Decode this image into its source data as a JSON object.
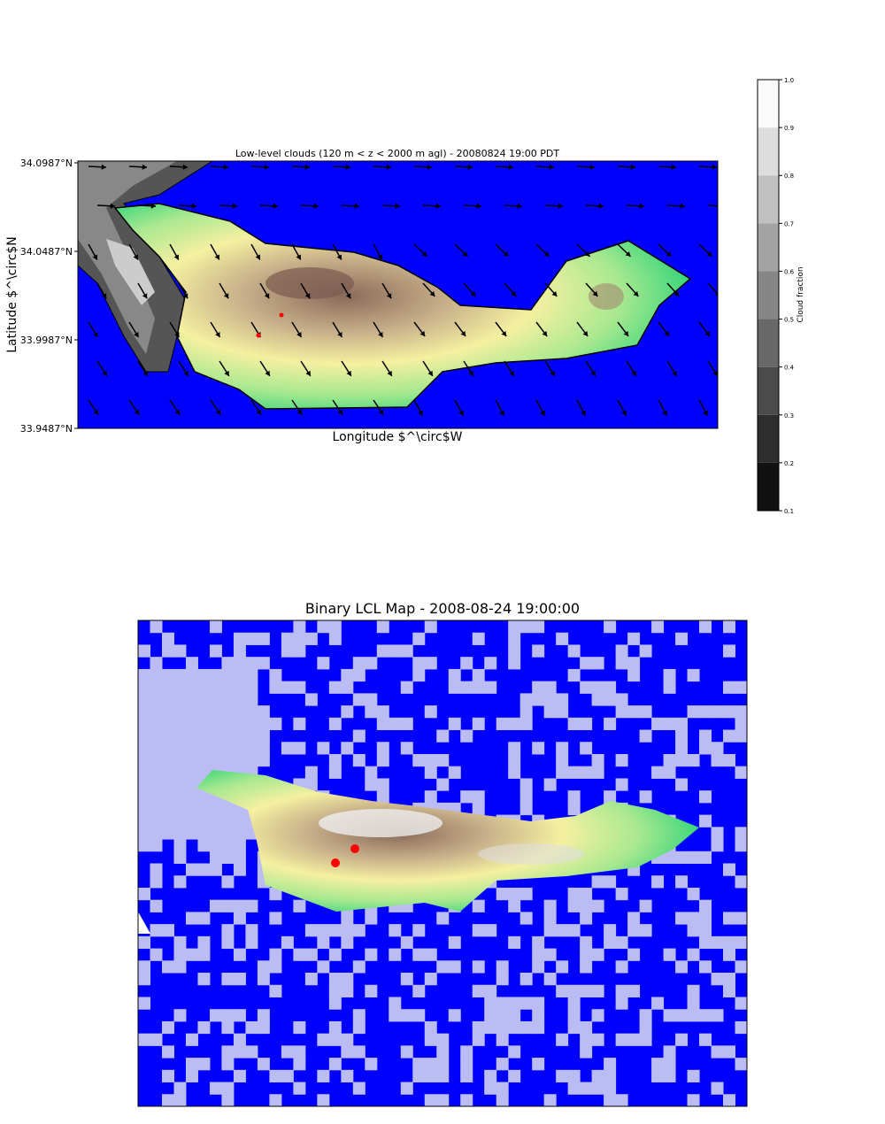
{
  "map1": {
    "title": "Low-level clouds (120 m < z < 2000 m agl) - 20080824 19:00 PDT",
    "ylabel": "Latitude $^\\circ$N",
    "xlabel": "Longitude $^\\circ$W",
    "yticks": [
      "34.0987°N",
      "34.0487°N",
      "33.9987°N",
      "33.9487°N"
    ]
  },
  "colorbar": {
    "label": "Cloud fraction",
    "ticks": [
      "0.1",
      "0.2",
      "0.3",
      "0.4",
      "0.5",
      "0.6",
      "0.7",
      "0.8",
      "0.9",
      "1.0"
    ]
  },
  "map2": {
    "title": "Binary LCL Map - 2008-08-24 19:00:00"
  }
}
